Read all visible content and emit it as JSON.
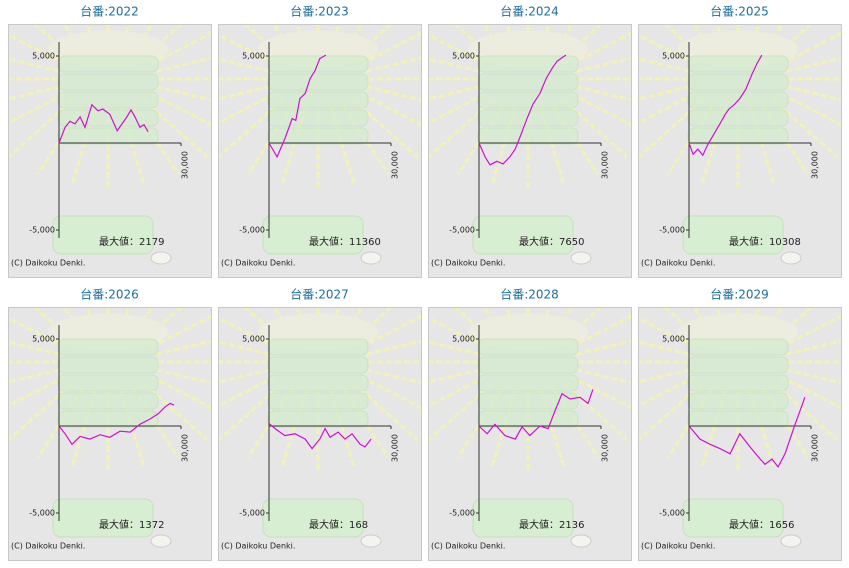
{
  "chart_data": [
    {
      "type": "line",
      "title": "台番:2022",
      "annotation": "最大値：2179",
      "copyright": "(C) Daikoku Denki.",
      "color": "#d010d0",
      "xlim": [
        0,
        30000
      ],
      "xticks": [
        {
          "value": 30000,
          "label": "30,000"
        }
      ],
      "ylim": [
        -5000,
        5000
      ],
      "yticks": [
        {
          "value": 5000,
          "label": "5,000"
        },
        {
          "value": -5000,
          "label": "-5,000"
        }
      ],
      "x": [
        0,
        1500,
        2700,
        3900,
        5200,
        6400,
        8100,
        9600,
        10800,
        12500,
        14300,
        15500,
        16700,
        17700,
        18700,
        19900,
        20900,
        21900
      ],
      "values": [
        0,
        900,
        1250,
        1100,
        1500,
        900,
        2200,
        1850,
        1950,
        1650,
        700,
        1100,
        1500,
        1900,
        1500,
        900,
        1050,
        650
      ]
    },
    {
      "type": "line",
      "title": "台番:2023",
      "annotation": "最大値：11360",
      "copyright": "(C) Daikoku Denki.",
      "color": "#d010d0",
      "xlim": [
        0,
        30000
      ],
      "xticks": [
        {
          "value": 30000,
          "label": "30,000"
        }
      ],
      "ylim": [
        -5000,
        5000
      ],
      "yticks": [
        {
          "value": 5000,
          "label": "5,000"
        },
        {
          "value": -5000,
          "label": "-5,000"
        }
      ],
      "x": [
        0,
        2000,
        3900,
        5700,
        6600,
        7600,
        8900,
        10100,
        11300,
        12500,
        14000
      ],
      "values": [
        0,
        -800,
        250,
        1400,
        1300,
        2550,
        2850,
        3700,
        4150,
        4850,
        5050
      ]
    },
    {
      "type": "line",
      "title": "台番:2024",
      "annotation": "最大値：7650",
      "copyright": "(C) Daikoku Denki.",
      "color": "#d010d0",
      "xlim": [
        0,
        30000
      ],
      "xticks": [
        {
          "value": 30000,
          "label": "30,000"
        }
      ],
      "ylim": [
        -5000,
        5000
      ],
      "yticks": [
        {
          "value": 5000,
          "label": "5,000"
        },
        {
          "value": -5000,
          "label": "-5,000"
        }
      ],
      "x": [
        0,
        1500,
        2700,
        4400,
        5900,
        7600,
        8900,
        10100,
        11800,
        13300,
        15000,
        16500,
        18000,
        19200,
        20700,
        21400
      ],
      "values": [
        0,
        -800,
        -1250,
        -1050,
        -1200,
        -800,
        -350,
        350,
        1400,
        2250,
        2850,
        3700,
        4300,
        4700,
        4950,
        5050
      ]
    },
    {
      "type": "line",
      "title": "台番:2025",
      "annotation": "最大値：10308",
      "copyright": "(C) Daikoku Denki.",
      "color": "#d010d0",
      "xlim": [
        0,
        30000
      ],
      "xticks": [
        {
          "value": 30000,
          "label": "30,000"
        }
      ],
      "ylim": [
        -5000,
        5000
      ],
      "yticks": [
        {
          "value": 5000,
          "label": "5,000"
        },
        {
          "value": -5000,
          "label": "-5,000"
        }
      ],
      "x": [
        0,
        1000,
        2200,
        3400,
        4700,
        6100,
        7600,
        8900,
        9800,
        11300,
        12500,
        14000,
        15500,
        16700,
        17900
      ],
      "values": [
        0,
        -650,
        -350,
        -700,
        -50,
        500,
        1100,
        1650,
        1950,
        2250,
        2550,
        3100,
        3950,
        4550,
        5050
      ]
    },
    {
      "type": "line",
      "title": "台番:2026",
      "annotation": "最大値：1372",
      "copyright": "(C) Daikoku Denki.",
      "color": "#d010d0",
      "xlim": [
        0,
        30000
      ],
      "xticks": [
        {
          "value": 30000,
          "label": "30,000"
        }
      ],
      "ylim": [
        -5000,
        5000
      ],
      "yticks": [
        {
          "value": 5000,
          "label": "5,000"
        },
        {
          "value": -5000,
          "label": "-5,000"
        }
      ],
      "x": [
        0,
        1500,
        3200,
        5200,
        7600,
        10100,
        12500,
        15000,
        17500,
        19900,
        22400,
        24400,
        26100,
        27300,
        28300
      ],
      "values": [
        0,
        -450,
        -1050,
        -600,
        -750,
        -500,
        -650,
        -300,
        -350,
        100,
        400,
        700,
        1100,
        1300,
        1200
      ]
    },
    {
      "type": "line",
      "title": "台番:2027",
      "annotation": "最大値：168",
      "copyright": "(C) Daikoku Denki.",
      "color": "#d010d0",
      "xlim": [
        0,
        30000
      ],
      "xticks": [
        {
          "value": 30000,
          "label": "30,000"
        }
      ],
      "ylim": [
        -5000,
        5000
      ],
      "yticks": [
        {
          "value": 5000,
          "label": "5,000"
        },
        {
          "value": -5000,
          "label": "-5,000"
        }
      ],
      "x": [
        0,
        1500,
        3900,
        6400,
        8900,
        10600,
        12500,
        13800,
        15000,
        17000,
        18700,
        20400,
        22400,
        23600,
        25100
      ],
      "values": [
        150,
        -150,
        -550,
        -450,
        -750,
        -1300,
        -750,
        -150,
        -650,
        -350,
        -750,
        -450,
        -1050,
        -1200,
        -750
      ]
    },
    {
      "type": "line",
      "title": "台番:2028",
      "annotation": "最大値：2136",
      "copyright": "(C) Daikoku Denki.",
      "color": "#d010d0",
      "xlim": [
        0,
        30000
      ],
      "xticks": [
        {
          "value": 30000,
          "label": "30,000"
        }
      ],
      "ylim": [
        -5000,
        5000
      ],
      "yticks": [
        {
          "value": 5000,
          "label": "5,000"
        },
        {
          "value": -5000,
          "label": "-5,000"
        }
      ],
      "x": [
        0,
        2000,
        3900,
        6400,
        8900,
        10600,
        12500,
        15000,
        17000,
        18900,
        20400,
        22400,
        24800,
        26800,
        28000
      ],
      "values": [
        0,
        -450,
        100,
        -550,
        -750,
        -50,
        -550,
        0,
        -150,
        1000,
        1850,
        1550,
        1650,
        1300,
        2100
      ]
    },
    {
      "type": "line",
      "title": "台番:2029",
      "annotation": "最大値：1656",
      "copyright": "(C) Daikoku Denki.",
      "color": "#d010d0",
      "xlim": [
        0,
        30000
      ],
      "xticks": [
        {
          "value": 30000,
          "label": "30,000"
        }
      ],
      "ylim": [
        -5000,
        5000
      ],
      "yticks": [
        {
          "value": 5000,
          "label": "5,000"
        },
        {
          "value": -5000,
          "label": "-5,000"
        }
      ],
      "x": [
        0,
        2700,
        5200,
        7600,
        10100,
        12500,
        15000,
        17500,
        18700,
        20400,
        21900,
        23600,
        26100,
        28500
      ],
      "values": [
        0,
        -750,
        -1050,
        -1300,
        -1600,
        -450,
        -1200,
        -1900,
        -2200,
        -1900,
        -2350,
        -1600,
        100,
        1650
      ]
    }
  ]
}
